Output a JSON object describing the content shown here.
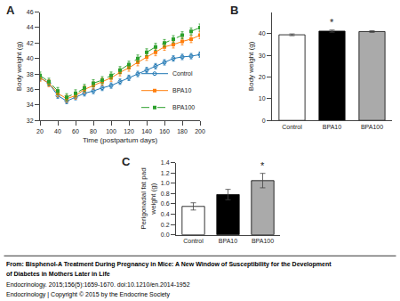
{
  "chart_data": [
    {
      "type": "line",
      "title": "A",
      "xlabel": "Time (postpartum days)",
      "ylabel": "Body weight (g)",
      "x": [
        20,
        30,
        40,
        50,
        60,
        70,
        80,
        90,
        100,
        110,
        120,
        130,
        140,
        150,
        160,
        170,
        180,
        190,
        200
      ],
      "series": [
        {
          "name": "Control",
          "values": [
            37.5,
            36.8,
            35.2,
            34.5,
            35.0,
            35.5,
            35.8,
            36.2,
            36.5,
            37.0,
            37.5,
            38.0,
            38.5,
            39.0,
            39.5,
            40.0,
            40.2,
            40.3,
            40.5
          ],
          "errors": 0.35,
          "marker": "circle-open",
          "line_style": "solid"
        },
        {
          "name": "BPA10",
          "values": [
            37.5,
            36.8,
            35.5,
            34.8,
            35.2,
            36.0,
            36.5,
            37.0,
            37.5,
            38.2,
            38.8,
            39.5,
            40.2,
            40.8,
            41.5,
            41.8,
            42.2,
            42.5,
            43.0
          ],
          "errors": 0.45,
          "marker": "square",
          "line_style": "solid"
        },
        {
          "name": "BPA100",
          "values": [
            37.8,
            37.0,
            35.8,
            35.0,
            35.5,
            36.2,
            36.8,
            37.2,
            37.8,
            38.5,
            39.2,
            40.0,
            40.8,
            41.5,
            42.0,
            42.5,
            43.0,
            43.5,
            44.0
          ],
          "errors": 0.45,
          "marker": "square",
          "line_style": "dash"
        }
      ],
      "xlim": [
        20,
        200
      ],
      "xticks": [
        20,
        40,
        60,
        80,
        100,
        120,
        140,
        160,
        180,
        200
      ],
      "ylim": [
        32,
        46
      ],
      "yticks": [
        32,
        34,
        36,
        38,
        40,
        42,
        44,
        46
      ],
      "grid": false,
      "legend": "lower right"
    },
    {
      "type": "bar",
      "title": "B",
      "ylabel": "Body weight (g)",
      "categories": [
        "Control",
        "BPA10",
        "BPA100"
      ],
      "values": [
        39.5,
        41.2,
        41.0
      ],
      "errors": [
        0.4,
        0.5,
        0.4
      ],
      "colors": [
        "white",
        "black",
        "#aaaaaa"
      ],
      "ylim": [
        0,
        50
      ],
      "yticks": [
        0,
        10,
        20,
        30,
        40
      ],
      "grid": false,
      "annotations": [
        {
          "text": "*",
          "category": "BPA10"
        }
      ]
    },
    {
      "type": "bar",
      "title": "C",
      "ylabel": "Perigonadal fat pad\nweight (g)",
      "categories": [
        "Control",
        "BPA10",
        "BPA100"
      ],
      "values": [
        0.55,
        0.78,
        1.05
      ],
      "errors": [
        0.07,
        0.1,
        0.14
      ],
      "colors": [
        "white",
        "black",
        "#aaaaaa"
      ],
      "ylim": [
        0.0,
        1.4
      ],
      "yticks": [
        {
          "value": 0.0,
          "label": "0.0"
        },
        0.2,
        0.4,
        0.6,
        0.8,
        {
          "value": 1.0,
          "label": "1.0"
        },
        1.2,
        1.4
      ],
      "grid": false,
      "annotations": [
        {
          "text": "*",
          "category": "BPA100"
        }
      ]
    }
  ],
  "annotations": [
    "From: Bisphenol-A Treatment During Pregnancy in Mice: A New Window of Susceptibility for the Development",
    "of Diabetes in Mothers Later in Life",
    "Endocrinology. 2015;156(5):1659-1670. doi:10.1210/en.2014-1952",
    "Endocrinology | Copyright © 2015 by the Endocrine Society"
  ]
}
